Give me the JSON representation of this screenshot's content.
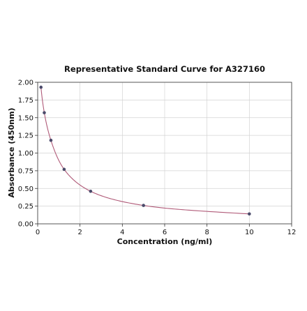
{
  "chart_data": {
    "type": "scatter",
    "title": "Representative Standard Curve for A327160",
    "xlabel": "Concentration (ng/ml)",
    "ylabel": "Absorbance (450nm)",
    "xlim": [
      0,
      12
    ],
    "ylim": [
      0,
      2.0
    ],
    "xticks": [
      "0",
      "2",
      "4",
      "6",
      "8",
      "10",
      "12"
    ],
    "yticks": [
      "0.00",
      "0.25",
      "0.50",
      "0.75",
      "1.00",
      "1.25",
      "1.50",
      "1.75",
      "2.00"
    ],
    "grid": true,
    "points": [
      {
        "x": 0.156,
        "y": 1.93
      },
      {
        "x": 0.313,
        "y": 1.57
      },
      {
        "x": 0.625,
        "y": 1.18
      },
      {
        "x": 1.25,
        "y": 0.77
      },
      {
        "x": 2.5,
        "y": 0.46
      },
      {
        "x": 5,
        "y": 0.26
      },
      {
        "x": 10,
        "y": 0.14
      }
    ],
    "fit_curve": "smooth decreasing fit through points",
    "colors": {
      "points": "#4a4a6a",
      "curve": "#b05a78",
      "grid": "#d3d3d3",
      "frame": "#333333"
    }
  }
}
